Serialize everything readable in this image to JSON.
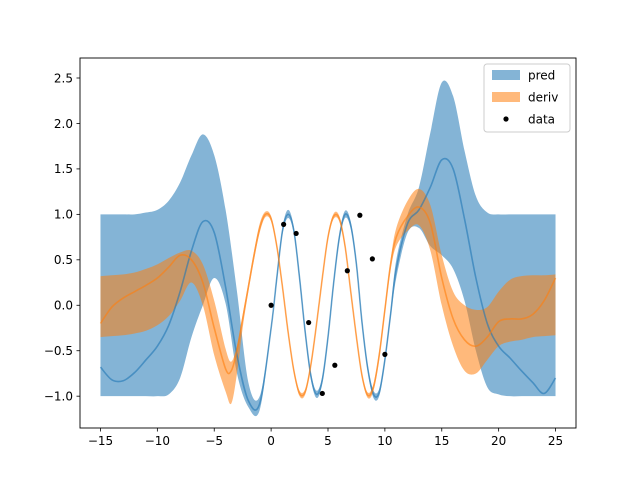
{
  "chart_data": {
    "type": "line",
    "title": "",
    "xlabel": "",
    "ylabel": "",
    "xlim": [
      -16.8,
      26.8
    ],
    "ylim": [
      -1.35,
      2.72
    ],
    "xticks": [
      -15,
      -10,
      -5,
      0,
      5,
      10,
      15,
      20,
      25
    ],
    "xtick_labels": [
      "−15",
      "−10",
      "−5",
      "0",
      "5",
      "10",
      "15",
      "20",
      "25"
    ],
    "yticks": [
      -1.0,
      -0.5,
      0.0,
      0.5,
      1.0,
      1.5,
      2.0,
      2.5
    ],
    "ytick_labels": [
      "−1.0",
      "−0.5",
      "0.0",
      "0.5",
      "1.0",
      "1.5",
      "2.0",
      "2.5"
    ],
    "grid": false,
    "legend_position": "top-right",
    "legend": [
      {
        "label": "pred",
        "kind": "band",
        "color": "#1f77b4"
      },
      {
        "label": "deriv",
        "kind": "band",
        "color": "#ff7f0e"
      },
      {
        "label": "data",
        "kind": "marker",
        "color": "#000000"
      }
    ],
    "series": [
      {
        "name": "pred",
        "color": "#1f77b4",
        "x": [
          -15,
          -14,
          -13,
          -12,
          -11,
          -10,
          -9,
          -8,
          -7,
          -6,
          -5,
          -4,
          -3,
          -2,
          -1,
          0,
          0.5,
          1,
          1.5,
          2,
          2.5,
          3,
          3.5,
          4,
          4.5,
          5,
          5.5,
          6,
          6.5,
          7,
          7.5,
          8,
          8.5,
          9,
          9.5,
          10,
          10.5,
          11,
          12,
          13,
          14,
          15,
          16,
          17,
          18,
          19,
          20,
          21,
          22,
          23,
          24,
          25
        ],
        "mean": [
          -0.68,
          -0.82,
          -0.83,
          -0.74,
          -0.6,
          -0.45,
          -0.22,
          0.15,
          0.6,
          0.92,
          0.8,
          0.2,
          -0.55,
          -1.05,
          -1.08,
          -0.25,
          0.3,
          0.82,
          1.0,
          0.82,
          0.3,
          -0.3,
          -0.78,
          -0.98,
          -0.82,
          -0.35,
          0.25,
          0.75,
          1.0,
          0.88,
          0.45,
          -0.2,
          -0.7,
          -0.98,
          -0.96,
          -0.6,
          -0.1,
          0.4,
          0.9,
          1.05,
          1.3,
          1.6,
          1.5,
          0.95,
          0.3,
          -0.2,
          -0.45,
          -0.58,
          -0.72,
          -0.85,
          -0.97,
          -0.8
        ],
        "upper": [
          1.0,
          1.0,
          1.0,
          1.0,
          1.02,
          1.05,
          1.15,
          1.35,
          1.65,
          1.88,
          1.65,
          1.05,
          0.15,
          -0.85,
          -1.0,
          -0.22,
          0.34,
          0.86,
          1.05,
          0.86,
          0.34,
          -0.26,
          -0.74,
          -0.94,
          -0.78,
          -0.31,
          0.29,
          0.79,
          1.04,
          0.92,
          0.49,
          -0.16,
          -0.66,
          -0.94,
          -0.92,
          -0.56,
          -0.05,
          0.5,
          1.0,
          1.3,
          1.9,
          2.45,
          2.3,
          1.7,
          1.2,
          1.02,
          1.0,
          1.0,
          1.0,
          1.0,
          1.0,
          1.0
        ],
        "lower": [
          -1.0,
          -1.0,
          -1.0,
          -1.0,
          -1.0,
          -1.0,
          -0.98,
          -0.8,
          -0.35,
          0.0,
          0.3,
          0.02,
          -0.75,
          -1.12,
          -1.15,
          -0.28,
          0.26,
          0.78,
          0.96,
          0.78,
          0.26,
          -0.34,
          -0.82,
          -1.02,
          -0.86,
          -0.39,
          0.21,
          0.71,
          0.96,
          0.84,
          0.41,
          -0.24,
          -0.74,
          -1.02,
          -1.0,
          -0.64,
          -0.15,
          0.3,
          0.8,
          0.85,
          0.65,
          0.55,
          0.4,
          0.05,
          -0.5,
          -0.9,
          -0.98,
          -1.0,
          -1.0,
          -1.0,
          -1.0,
          -1.0
        ]
      },
      {
        "name": "deriv",
        "color": "#ff7f0e",
        "x": [
          -15,
          -14,
          -13,
          -12,
          -11,
          -10,
          -9,
          -8,
          -7,
          -6,
          -5,
          -4,
          -3.5,
          -3,
          -2.5,
          -2,
          -1.5,
          -1,
          -0.5,
          0,
          0.5,
          1,
          1.5,
          2,
          2.5,
          3,
          3.5,
          4,
          4.5,
          5,
          5.5,
          6,
          6.5,
          7,
          7.5,
          8,
          8.5,
          9,
          9.5,
          10,
          10.5,
          11,
          12,
          13,
          14,
          15,
          16,
          17,
          18,
          19,
          20,
          21,
          22,
          23,
          24,
          25
        ],
        "mean": [
          -0.2,
          -0.02,
          0.08,
          0.15,
          0.22,
          0.3,
          0.42,
          0.55,
          0.5,
          0.25,
          -0.25,
          -0.7,
          -0.72,
          -0.5,
          -0.15,
          0.2,
          0.55,
          0.85,
          1.0,
          0.95,
          0.65,
          0.2,
          -0.3,
          -0.72,
          -0.97,
          -0.95,
          -0.65,
          -0.2,
          0.3,
          0.75,
          0.98,
          0.95,
          0.65,
          0.15,
          -0.35,
          -0.78,
          -0.99,
          -0.9,
          -0.55,
          -0.05,
          0.45,
          0.75,
          0.98,
          1.08,
          0.9,
          0.3,
          -0.15,
          -0.38,
          -0.45,
          -0.35,
          -0.18,
          -0.15,
          -0.15,
          -0.1,
          0.05,
          0.3
        ],
        "upper": [
          0.32,
          0.33,
          0.34,
          0.36,
          0.4,
          0.45,
          0.52,
          0.58,
          0.6,
          0.45,
          0.05,
          -0.48,
          -0.62,
          -0.44,
          -0.1,
          0.25,
          0.6,
          0.9,
          1.03,
          0.98,
          0.68,
          0.23,
          -0.27,
          -0.69,
          -0.94,
          -0.92,
          -0.62,
          -0.17,
          0.33,
          0.78,
          1.01,
          0.98,
          0.68,
          0.18,
          -0.32,
          -0.75,
          -0.96,
          -0.86,
          -0.5,
          0.0,
          0.5,
          0.85,
          1.15,
          1.28,
          1.1,
          0.55,
          0.15,
          0.0,
          -0.05,
          -0.02,
          0.15,
          0.28,
          0.32,
          0.33,
          0.33,
          0.34
        ],
        "lower": [
          -0.35,
          -0.34,
          -0.33,
          -0.31,
          -0.28,
          -0.22,
          -0.12,
          0.05,
          0.25,
          0.0,
          -0.55,
          -0.95,
          -1.08,
          -0.75,
          -0.25,
          0.15,
          0.5,
          0.8,
          0.97,
          0.92,
          0.62,
          0.17,
          -0.33,
          -0.75,
          -1.0,
          -0.98,
          -0.68,
          -0.23,
          0.27,
          0.72,
          0.95,
          0.92,
          0.62,
          0.12,
          -0.38,
          -0.81,
          -1.02,
          -0.94,
          -0.6,
          -0.1,
          0.38,
          0.65,
          0.82,
          0.88,
          0.6,
          0.0,
          -0.45,
          -0.72,
          -0.75,
          -0.6,
          -0.45,
          -0.4,
          -0.38,
          -0.35,
          -0.34,
          -0.33
        ]
      }
    ],
    "data_points": {
      "name": "data",
      "color": "#000000",
      "x": [
        0.0,
        1.1,
        2.2,
        3.3,
        4.5,
        5.6,
        6.7,
        7.8,
        8.9,
        10.0
      ],
      "y": [
        0.0,
        0.89,
        0.79,
        -0.19,
        -0.97,
        -0.66,
        0.38,
        0.99,
        0.51,
        -0.54
      ]
    }
  }
}
